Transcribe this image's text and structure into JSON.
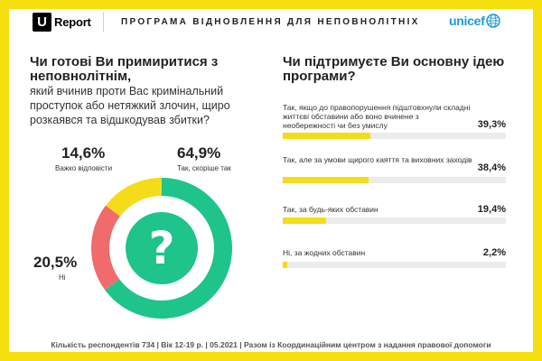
{
  "header": {
    "logo_mark": "U",
    "logo_text": "Report",
    "program_title": "ПРОГРАМА ВІДНОВЛЕННЯ ДЛЯ НЕПОВНОЛІТНІХ",
    "partner": "unicef"
  },
  "left_question": {
    "bold": "Чи готові Ви примиритися з неповнолітнім,",
    "regular": "який вчинив проти Вас кримінальний проступок або нетяжкий злочин, щиро розкаявся та відшкодував збитки?",
    "center_icon": "question-mark"
  },
  "right_question": {
    "text": "Чи підтримуєте Ви основну ідею програми?"
  },
  "footer": {
    "text": "Кількість респондентів 734 | Вік 12-19 р. | 05.2021 | Разом із Координаційним центром з надання правової допомоги"
  },
  "colors": {
    "background_yellow": "#f6df0e",
    "green": "#1ec48a",
    "red": "#f06b6b",
    "yellow": "#f5dc1a",
    "bar_track": "#ececec",
    "unicef_blue": "#1a9ad6"
  },
  "chart_data": [
    {
      "type": "pie",
      "variant": "donut",
      "segments": [
        {
          "label": "Так, скоріше так",
          "value": 64.9,
          "display": "64,9%",
          "color": "#1ec48a"
        },
        {
          "label": "Ні",
          "value": 20.5,
          "display": "20,5%",
          "color": "#f06b6b"
        },
        {
          "label": "Важко відповісти",
          "value": 14.6,
          "display": "14,6%",
          "color": "#f5dc1a"
        }
      ]
    },
    {
      "type": "bar",
      "orientation": "horizontal",
      "xlim": [
        0,
        100
      ],
      "categories": [
        "Так, якщо до правопорушення підштовхнули складні життєві обставини або воно вчинене з необережності чи без умислу",
        "Так, але за умови щирого каяття та виховних заходів",
        "Так, за будь-яких обставин",
        "Ні, за жодних обставин"
      ],
      "values": [
        39.3,
        38.4,
        19.4,
        2.2
      ],
      "display": [
        "39,3%",
        "38,4%",
        "19,4%",
        "2,2%"
      ]
    }
  ]
}
